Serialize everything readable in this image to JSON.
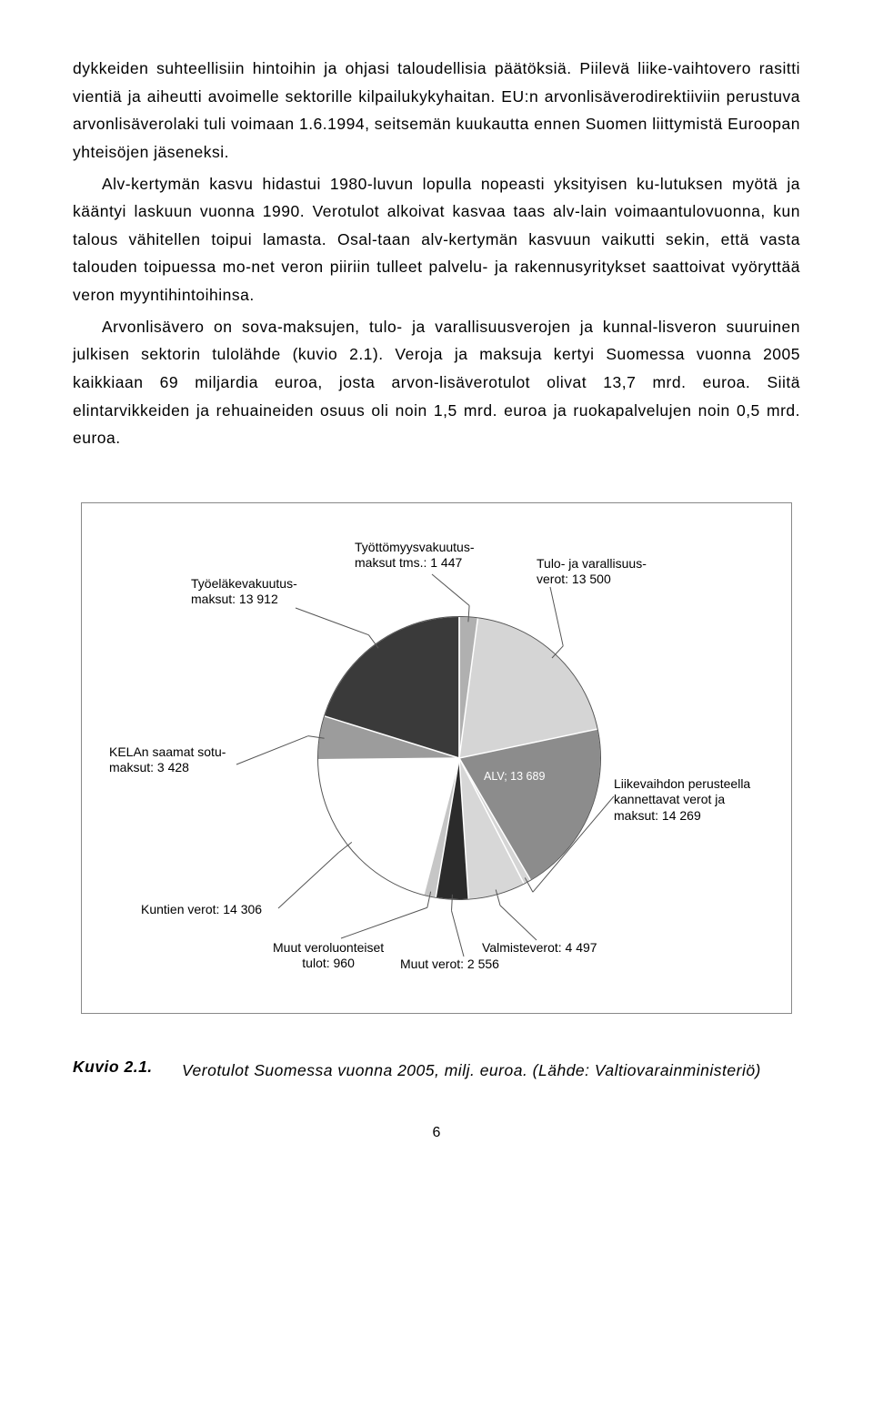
{
  "paragraphs": {
    "p1a": "dykkeiden suhteellisiin hintoihin ja ohjasi taloudellisia päätöksiä. Piilevä liike-vaihtovero rasitti vientiä ja aiheutti avoimelle sektorille kilpailukykyhaitan. EU:n arvonlisäverodirektiiviin perustuva arvonlisäverolaki tuli voimaan 1.6.1994, seitsemän kuukautta ennen Suomen liittymistä Euroopan yhteisöjen jäseneksi.",
    "p2": "Alv-kertymän kasvu hidastui 1980-luvun lopulla nopeasti yksityisen ku-lutuksen myötä ja kääntyi laskuun vuonna 1990. Verotulot alkoivat kasvaa taas alv-lain voimaantulovuonna, kun talous vähitellen toipui lamasta. Osal-taan alv-kertymän kasvuun vaikutti sekin, että vasta talouden toipuessa mo-net veron piiriin tulleet palvelu- ja rakennusyritykset saattoivat vyöryttää veron myyntihintoihinsa.",
    "p3": "Arvonlisävero on sova-maksujen, tulo- ja varallisuusverojen ja kunnal-lisveron suuruinen julkisen sektorin tulolähde (kuvio 2.1). Veroja ja maksuja kertyi Suomessa vuonna 2005 kaikkiaan 69 miljardia euroa, josta arvon-lisäverotulot olivat 13,7 mrd. euroa. Siitä elintarvikkeiden ja rehuaineiden osuus oli noin 1,5 mrd. euroa ja ruokapalvelujen noin 0,5 mrd. euroa."
  },
  "chart": {
    "slices": [
      {
        "name": "Työttömyysvakuutusmaksut tms.",
        "value": 1447,
        "color": "#b0b0b0"
      },
      {
        "name": "Tulo- ja varallisuusverot",
        "value": 13500,
        "color": "#d5d5d5"
      },
      {
        "name": "ALV",
        "value": 13689,
        "color": "#8c8c8c"
      },
      {
        "name": "Liikevaihdon perusteella kannettavat verot ja maksut",
        "value": 580,
        "color": "#d5d5d5"
      },
      {
        "name": "Valmisteverot",
        "value": 4497,
        "color": "#d7d7d7"
      },
      {
        "name": "Muut verot",
        "value": 2556,
        "color": "#2b2b2b"
      },
      {
        "name": "Muut veroluonteiset tulot",
        "value": 960,
        "color": "#c6c6c6"
      },
      {
        "name": "Kuntien verot",
        "value": 14306,
        "color": "#ffffff"
      },
      {
        "name": "KELAn saamat sotumaksut",
        "value": 3428,
        "color": "#9c9c9c"
      },
      {
        "name": "Työeläkevakuutusmaksut",
        "value": 13912,
        "color": "#3a3a3a"
      }
    ],
    "labels": {
      "tyottomyys_l1": "Työttömyysvakuutus-",
      "tyottomyys_l2": "maksut tms.: 1 447",
      "tulo_l1": "Tulo- ja varallisuus-",
      "tulo_l2": "verot: 13 500",
      "alv": "ALV; 13 689",
      "liike_l1": "Liikevaihdon perusteella",
      "liike_l2": "kannettavat verot ja",
      "liike_l3": "maksut: 14 269",
      "valmiste": "Valmisteverot: 4 497",
      "muutverot": "Muut verot: 2 556",
      "muutluont_l1": "Muut veroluonteiset",
      "muutluont_l2": "tulot: 960",
      "kuntien": "Kuntien verot: 14 306",
      "kela_l1": "KELAn saamat sotu-",
      "kela_l2": "maksut: 3 428",
      "tyoelake_l1": "Työeläkevakuutus-",
      "tyoelake_l2": "maksut: 13 912"
    }
  },
  "caption": {
    "head": "Kuvio 2.1.",
    "body": "Verotulot Suomessa vuonna 2005, milj. euroa. (Lähde: Valtiovarainministeriö)"
  },
  "page_number": "6"
}
